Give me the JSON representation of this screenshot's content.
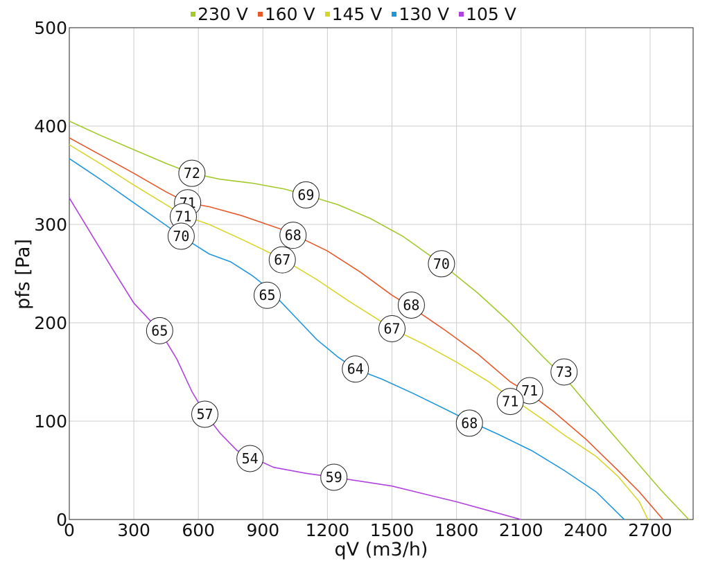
{
  "chart_data": {
    "type": "line",
    "xlabel": "qV (m3/h)",
    "ylabel": "pfs [Pa]",
    "xlim": [
      0,
      2900
    ],
    "ylim": [
      0,
      500
    ],
    "xticks": [
      0,
      300,
      600,
      900,
      1200,
      1500,
      1800,
      2100,
      2400,
      2700
    ],
    "yticks": [
      0,
      100,
      200,
      300,
      400,
      500
    ],
    "grid": true,
    "legend_position": "top-center",
    "series": [
      {
        "name": "230 V",
        "color": "#a3c92c",
        "points": [
          [
            0,
            405
          ],
          [
            150,
            390
          ],
          [
            300,
            376
          ],
          [
            450,
            362
          ],
          [
            570,
            352
          ],
          [
            700,
            346
          ],
          [
            850,
            342
          ],
          [
            1000,
            336
          ],
          [
            1100,
            330
          ],
          [
            1250,
            320
          ],
          [
            1400,
            306
          ],
          [
            1550,
            288
          ],
          [
            1730,
            260
          ],
          [
            1900,
            230
          ],
          [
            2050,
            200
          ],
          [
            2200,
            166
          ],
          [
            2320,
            140
          ],
          [
            2450,
            106
          ],
          [
            2600,
            68
          ],
          [
            2750,
            30
          ],
          [
            2880,
            0
          ]
        ]
      },
      {
        "name": "160 V",
        "color": "#e55a2b",
        "points": [
          [
            0,
            388
          ],
          [
            150,
            370
          ],
          [
            300,
            352
          ],
          [
            450,
            333
          ],
          [
            550,
            322
          ],
          [
            650,
            318
          ],
          [
            800,
            309
          ],
          [
            1000,
            294
          ],
          [
            1040,
            290
          ],
          [
            1200,
            273
          ],
          [
            1350,
            252
          ],
          [
            1500,
            228
          ],
          [
            1590,
            216
          ],
          [
            1750,
            192
          ],
          [
            1900,
            168
          ],
          [
            2050,
            140
          ],
          [
            2140,
            128
          ],
          [
            2250,
            110
          ],
          [
            2400,
            82
          ],
          [
            2550,
            50
          ],
          [
            2650,
            28
          ],
          [
            2760,
            0
          ]
        ]
      },
      {
        "name": "145 V",
        "color": "#d9d52a",
        "points": [
          [
            0,
            381
          ],
          [
            150,
            361
          ],
          [
            300,
            340
          ],
          [
            450,
            320
          ],
          [
            530,
            309
          ],
          [
            650,
            300
          ],
          [
            800,
            285
          ],
          [
            990,
            265
          ],
          [
            1150,
            244
          ],
          [
            1300,
            222
          ],
          [
            1430,
            204
          ],
          [
            1500,
            194
          ],
          [
            1650,
            178
          ],
          [
            1800,
            160
          ],
          [
            1950,
            140
          ],
          [
            2050,
            124
          ],
          [
            2120,
            114
          ],
          [
            2200,
            102
          ],
          [
            2300,
            86
          ],
          [
            2450,
            64
          ],
          [
            2550,
            44
          ],
          [
            2650,
            18
          ],
          [
            2690,
            0
          ]
        ]
      },
      {
        "name": "130 V",
        "color": "#2196db",
        "points": [
          [
            0,
            367
          ],
          [
            150,
            345
          ],
          [
            300,
            322
          ],
          [
            450,
            299
          ],
          [
            520,
            288
          ],
          [
            650,
            270
          ],
          [
            750,
            262
          ],
          [
            850,
            248
          ],
          [
            920,
            236
          ],
          [
            1050,
            206
          ],
          [
            1150,
            183
          ],
          [
            1250,
            165
          ],
          [
            1330,
            153
          ],
          [
            1450,
            143
          ],
          [
            1600,
            128
          ],
          [
            1750,
            112
          ],
          [
            1860,
            100
          ],
          [
            2000,
            86
          ],
          [
            2150,
            70
          ],
          [
            2300,
            50
          ],
          [
            2450,
            28
          ],
          [
            2580,
            0
          ]
        ]
      },
      {
        "name": "105 V",
        "color": "#b042df",
        "points": [
          [
            0,
            327
          ],
          [
            100,
            291
          ],
          [
            200,
            255
          ],
          [
            300,
            220
          ],
          [
            420,
            192
          ],
          [
            500,
            163
          ],
          [
            570,
            130
          ],
          [
            630,
            108
          ],
          [
            700,
            88
          ],
          [
            780,
            70
          ],
          [
            850,
            63
          ],
          [
            950,
            53
          ],
          [
            1100,
            47
          ],
          [
            1230,
            43
          ],
          [
            1350,
            39
          ],
          [
            1500,
            34
          ],
          [
            1650,
            26
          ],
          [
            1800,
            18
          ],
          [
            1950,
            9
          ],
          [
            2100,
            0
          ]
        ]
      }
    ],
    "annotations": [
      {
        "text": "72",
        "x": 570,
        "y": 352
      },
      {
        "text": "69",
        "x": 1100,
        "y": 330
      },
      {
        "text": "70",
        "x": 1730,
        "y": 260
      },
      {
        "text": "73",
        "x": 2300,
        "y": 150
      },
      {
        "text": "71",
        "x": 550,
        "y": 322
      },
      {
        "text": "68",
        "x": 1040,
        "y": 289
      },
      {
        "text": "68",
        "x": 1590,
        "y": 218
      },
      {
        "text": "71",
        "x": 2140,
        "y": 131
      },
      {
        "text": "71",
        "x": 530,
        "y": 308
      },
      {
        "text": "67",
        "x": 990,
        "y": 264
      },
      {
        "text": "67",
        "x": 1500,
        "y": 194
      },
      {
        "text": "71",
        "x": 2050,
        "y": 120
      },
      {
        "text": "70",
        "x": 520,
        "y": 288
      },
      {
        "text": "65",
        "x": 920,
        "y": 228
      },
      {
        "text": "64",
        "x": 1330,
        "y": 153
      },
      {
        "text": "68",
        "x": 1860,
        "y": 98
      },
      {
        "text": "65",
        "x": 420,
        "y": 192
      },
      {
        "text": "57",
        "x": 630,
        "y": 107
      },
      {
        "text": "54",
        "x": 840,
        "y": 62
      },
      {
        "text": "59",
        "x": 1230,
        "y": 43
      }
    ]
  }
}
